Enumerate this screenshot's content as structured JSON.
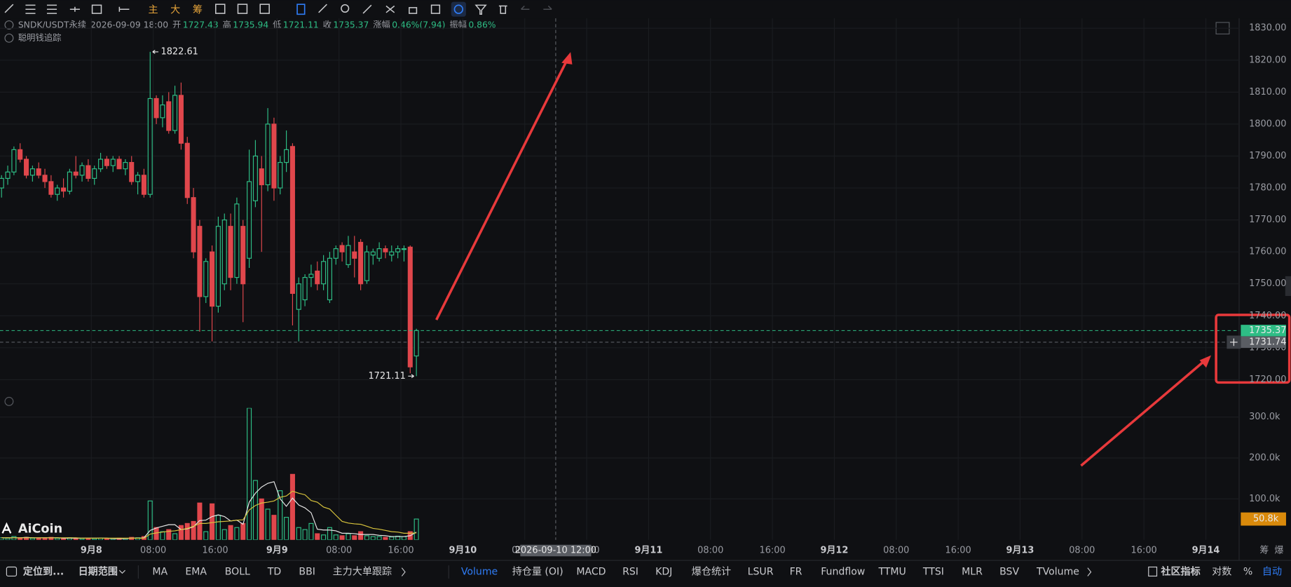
{
  "toolbar": {
    "buttons": [
      "主",
      "大",
      "筹"
    ]
  },
  "header": {
    "symbol": "SNDK/USDT永续",
    "datetime": "2026-09-09 18:00",
    "open_label": "开",
    "high_label": "高",
    "low_label": "低",
    "close_label": "收",
    "change_label": "涨幅",
    "change": "0.46%(7.94)",
    "amplitude_label": "振幅",
    "amplitude": "0.86%",
    "indicator": "聪明钱追踪"
  },
  "chart_data": {
    "type": "candlestick",
    "x": [
      -11.6,
      -10.8,
      -10,
      -9.2,
      -8.4,
      -7.6,
      -6.8,
      -6,
      -5.2,
      -4.4,
      -3.6,
      -2.8,
      -2,
      -1.2,
      -0.4,
      0.4,
      1.2,
      2,
      2.8,
      3.6,
      4.4,
      5.2,
      6,
      6.8,
      7.6,
      8.4,
      9.2,
      10,
      10.8,
      11.6,
      12.4,
      13.2,
      14,
      14.8,
      15.6,
      16.4,
      17.2,
      18,
      18.8,
      19.6,
      20.4,
      21.2,
      22,
      22.8,
      23.6,
      24.4,
      25.2,
      26,
      26.8,
      27.6,
      28.4,
      29.2,
      30,
      30.8,
      31.6,
      32.4,
      33.2,
      34,
      34.8,
      35.6,
      36.4,
      37.2,
      38,
      38.8,
      39.6,
      40.4,
      41.2,
      42
    ],
    "open": [
      1780,
      1783,
      1785,
      1792,
      1789,
      1784,
      1786,
      1784,
      1782,
      1778,
      1780,
      1779,
      1785,
      1784,
      1787,
      1783,
      1786,
      1789,
      1787,
      1789,
      1786,
      1788,
      1782,
      1784,
      1778,
      1808,
      1802,
      1807,
      1798,
      1809,
      1794,
      1777,
      1768,
      1746,
      1760,
      1743,
      1750,
      1768,
      1752,
      1768,
      1758,
      1776,
      1786,
      1781,
      1800,
      1780,
      1788,
      1793,
      1742,
      1745,
      1752,
      1754,
      1750,
      1745,
      1758,
      1762,
      1756,
      1760,
      1763,
      1751,
      1759,
      1758,
      1761,
      1759,
      1760,
      1761,
      1761.5,
      1727.43
    ],
    "high": [
      1784,
      1787,
      1793,
      1794,
      1790,
      1787,
      1788,
      1786,
      1784,
      1781,
      1783,
      1786,
      1790,
      1788,
      1789,
      1787,
      1791,
      1790,
      1790,
      1790,
      1789,
      1790,
      1785,
      1786,
      1822.61,
      1809,
      1809,
      1810,
      1812,
      1813,
      1796,
      1780,
      1770,
      1758,
      1762,
      1771,
      1772,
      1772,
      1777,
      1770,
      1792,
      1795,
      1790,
      1805,
      1802,
      1790,
      1798,
      1794,
      1752,
      1753,
      1756,
      1757,
      1759,
      1760,
      1762,
      1763,
      1765,
      1765,
      1764,
      1762,
      1761,
      1763,
      1762,
      1762,
      1762,
      1762,
      1762,
      1735.94
    ],
    "low": [
      1777,
      1781,
      1784,
      1788,
      1783,
      1782,
      1783,
      1780,
      1777,
      1776,
      1777,
      1778,
      1783,
      1782,
      1782,
      1781,
      1785,
      1786,
      1785,
      1786,
      1784,
      1781,
      1778,
      1777,
      1777,
      1800,
      1799,
      1797,
      1797,
      1792,
      1775,
      1758,
      1735,
      1744,
      1732,
      1741,
      1748,
      1748,
      1750,
      1738,
      1755,
      1774,
      1760,
      1779,
      1776,
      1778,
      1785,
      1737,
      1732,
      1743,
      1749,
      1748,
      1748,
      1744,
      1756,
      1757,
      1755,
      1752,
      1748,
      1750,
      1756,
      1757,
      1758,
      1757,
      1758,
      1757,
      1722,
      1721.11
    ],
    "close": [
      1783,
      1785,
      1792,
      1789,
      1784,
      1786,
      1784,
      1782,
      1778,
      1780,
      1779,
      1785,
      1784,
      1787,
      1783,
      1786,
      1789,
      1787,
      1789,
      1786,
      1788,
      1782,
      1784,
      1778,
      1808,
      1802,
      1806,
      1798,
      1809,
      1794,
      1777,
      1760,
      1746,
      1757,
      1743,
      1768,
      1770,
      1752,
      1775,
      1750,
      1782,
      1790,
      1781,
      1800,
      1780,
      1788,
      1792,
      1747,
      1750,
      1752,
      1753,
      1750,
      1757,
      1758,
      1761,
      1760,
      1762,
      1758,
      1750,
      1760,
      1760,
      1761,
      1760,
      1760,
      1761,
      1761,
      1724,
      1735.37
    ],
    "up_color": "#2ebd85",
    "down_color": "#e0474c",
    "xlim": [
      -11.8,
      148.3
    ],
    "xticks": [
      {
        "value": 0,
        "label": "9月8"
      },
      {
        "value": 8,
        "label": "08:00"
      },
      {
        "value": 16,
        "label": "16:00"
      },
      {
        "value": 24,
        "label": "9月9"
      },
      {
        "value": 32,
        "label": "08:00"
      },
      {
        "value": 40,
        "label": "16:00"
      },
      {
        "value": 48,
        "label": "9月10"
      },
      {
        "value": 56,
        "label": "08:00"
      },
      {
        "value": 64,
        "label": "16:00"
      },
      {
        "value": 72,
        "label": "9月11"
      },
      {
        "value": 80,
        "label": "08:00"
      },
      {
        "value": 88,
        "label": "16:00"
      },
      {
        "value": 96,
        "label": "9月12"
      },
      {
        "value": 104,
        "label": "08:00"
      },
      {
        "value": 112,
        "label": "16:00"
      },
      {
        "value": 120,
        "label": "9月13"
      },
      {
        "value": 128,
        "label": "08:00"
      },
      {
        "value": 136,
        "label": "16:00"
      },
      {
        "value": 144,
        "label": "9月14"
      }
    ],
    "ylim": [
      1715,
      1833.1
    ],
    "yticks": [
      {
        "value": 1720,
        "label": "1720.00"
      },
      {
        "value": 1730,
        "label": "1730.00"
      },
      {
        "value": 1740,
        "label": "1740.00"
      },
      {
        "value": 1750,
        "label": "1750.00"
      },
      {
        "value": 1760,
        "label": "1760.00"
      },
      {
        "value": 1770,
        "label": "1770.00"
      },
      {
        "value": 1780,
        "label": "1780.00"
      },
      {
        "value": 1790,
        "label": "1790.00"
      },
      {
        "value": 1800,
        "label": "1800.00"
      },
      {
        "value": 1810,
        "label": "1810.00"
      },
      {
        "value": 1820,
        "label": "1820.00"
      },
      {
        "value": 1830,
        "label": "1830.00"
      }
    ],
    "grid": true,
    "crosshair": {
      "x": {
        "value": 60,
        "label": "2026-09-10 12:00"
      },
      "y": {
        "value": 1731.74,
        "label": "1731.74"
      }
    },
    "volume": {
      "values": [
        5000,
        4000,
        8000,
        5000,
        6000,
        4000,
        4000,
        5000,
        6000,
        4000,
        3000,
        5000,
        4000,
        3000,
        4000,
        3000,
        4000,
        3000,
        3000,
        4000,
        3000,
        6000,
        5000,
        8000,
        95000,
        30000,
        20000,
        25000,
        15000,
        35000,
        40000,
        45000,
        90000,
        20000,
        88000,
        60000,
        25000,
        35000,
        30000,
        40000,
        322000,
        145000,
        100000,
        75000,
        60000,
        120000,
        55000,
        160000,
        30000,
        25000,
        40000,
        15000,
        12000,
        30000,
        12000,
        10000,
        15000,
        10000,
        20000,
        10000,
        8000,
        8000,
        6000,
        7000,
        9000,
        8000,
        20000,
        50800
      ],
      "value_labels": {
        "67": "50.8k"
      },
      "ylim": [
        0,
        322000
      ],
      "yticks": [
        {
          "value": 100000,
          "label": "100.0k"
        },
        {
          "value": 200000,
          "label": "200.0k"
        },
        {
          "value": 300000,
          "label": "300.0k"
        }
      ],
      "ma": [
        {
          "color": "#e6e6e6",
          "values": [
            5000,
            5000,
            5000,
            5000,
            6000,
            5000,
            5000,
            5000,
            5000,
            5000,
            4000,
            4000,
            4000,
            4000,
            4000,
            4000,
            4000,
            4000,
            3000,
            3000,
            3000,
            4000,
            4000,
            5000,
            23000,
            29000,
            33000,
            37000,
            37000,
            25000,
            27000,
            32000,
            47000,
            48000,
            57000,
            61000,
            57000,
            46000,
            48000,
            38000,
            92000,
            114000,
            129000,
            138000,
            142000,
            100000,
            82000,
            102000,
            85000,
            78000,
            66000,
            26000,
            24000,
            24000,
            22000,
            16000,
            16000,
            15000,
            13000,
            13000,
            13000,
            11000,
            10000,
            8000,
            8000,
            8000,
            10000,
            19000
          ]
        },
        {
          "color": "#d8c43c",
          "values": [
            5000,
            5000,
            5000,
            5000,
            5000,
            5000,
            5000,
            5000,
            5000,
            5000,
            5000,
            5000,
            5000,
            4000,
            4000,
            4000,
            4000,
            4000,
            4000,
            4000,
            4000,
            4000,
            4000,
            4000,
            14000,
            17000,
            19000,
            21000,
            22000,
            25000,
            28000,
            33000,
            40000,
            40000,
            42000,
            44000,
            45000,
            46000,
            48000,
            49000,
            73000,
            84000,
            90000,
            92000,
            95000,
            104000,
            107000,
            119000,
            114000,
            110000,
            96000,
            92000,
            80000,
            75000,
            60000,
            45000,
            41000,
            39000,
            38000,
            33000,
            28000,
            26000,
            23000,
            20000,
            19000,
            16000,
            16000,
            17000
          ]
        }
      ]
    }
  },
  "axis_corner": [
    "筹",
    "爆"
  ],
  "logo": "AiCoin",
  "bottom_bar": {
    "locate": "定位到...",
    "date_range": "日期范围",
    "main_indicators": [
      "MA",
      "EMA",
      "BOLL",
      "TD",
      "BBI",
      "主力大单跟踪"
    ],
    "sub_indicators": [
      "Volume",
      "持仓量 (OI)",
      "MACD",
      "RSI",
      "KDJ",
      "爆仓统计",
      "LSUR",
      "FR",
      "Fundflow",
      "TTMU",
      "TTSI",
      "MLR",
      "BSV",
      "TVolume"
    ],
    "right": [
      "社区指标",
      "对数",
      "%",
      "自动"
    ]
  }
}
